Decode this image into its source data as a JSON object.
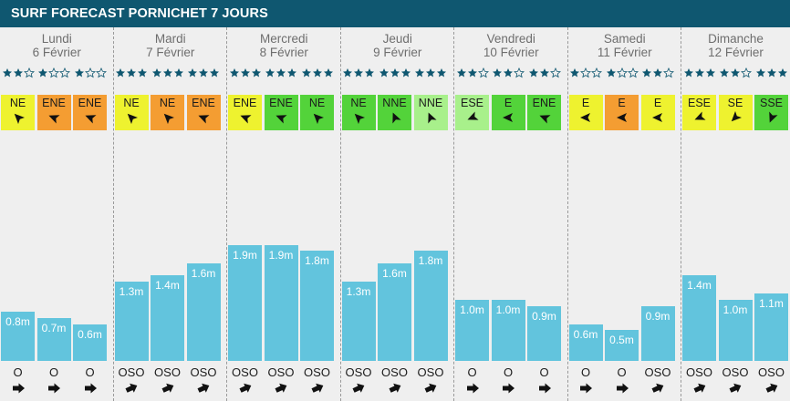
{
  "header": {
    "title": "SURF FORECAST PORNICHET 7 JOURS"
  },
  "colors": {
    "header_bg": "#0f5770",
    "bar": "#62c4dd",
    "star": "#0f5770",
    "wind_yellow": "#eef22f",
    "wind_orange": "#f49d32",
    "wind_green": "#53d33a",
    "wind_lightgreen": "#a8f08b"
  },
  "days": [
    {
      "name": "Lundi",
      "date": "6 Février",
      "slots": [
        {
          "stars": 2,
          "wind_dir": "NE",
          "wind_color": "#eef22f",
          "wind_angle": 225,
          "height": 0.8,
          "height_label": "0.8m",
          "swell_dir": "O",
          "swell_angle": 0
        },
        {
          "stars": 1,
          "wind_dir": "ENE",
          "wind_color": "#f49d32",
          "wind_angle": 202,
          "height": 0.7,
          "height_label": "0.7m",
          "swell_dir": "O",
          "swell_angle": 0
        },
        {
          "stars": 1,
          "wind_dir": "ENE",
          "wind_color": "#f49d32",
          "wind_angle": 202,
          "height": 0.6,
          "height_label": "0.6m",
          "swell_dir": "O",
          "swell_angle": 0
        }
      ]
    },
    {
      "name": "Mardi",
      "date": "7 Février",
      "slots": [
        {
          "stars": 3,
          "wind_dir": "NE",
          "wind_color": "#eef22f",
          "wind_angle": 225,
          "height": 1.3,
          "height_label": "1.3m",
          "swell_dir": "OSO",
          "swell_angle": -25
        },
        {
          "stars": 3,
          "wind_dir": "NE",
          "wind_color": "#f49d32",
          "wind_angle": 225,
          "height": 1.4,
          "height_label": "1.4m",
          "swell_dir": "OSO",
          "swell_angle": -25
        },
        {
          "stars": 3,
          "wind_dir": "ENE",
          "wind_color": "#f49d32",
          "wind_angle": 202,
          "height": 1.6,
          "height_label": "1.6m",
          "swell_dir": "OSO",
          "swell_angle": -25
        }
      ]
    },
    {
      "name": "Mercredi",
      "date": "8 Février",
      "slots": [
        {
          "stars": 3,
          "wind_dir": "ENE",
          "wind_color": "#eef22f",
          "wind_angle": 202,
          "height": 1.9,
          "height_label": "1.9m",
          "swell_dir": "OSO",
          "swell_angle": -25
        },
        {
          "stars": 3,
          "wind_dir": "ENE",
          "wind_color": "#53d33a",
          "wind_angle": 202,
          "height": 1.9,
          "height_label": "1.9m",
          "swell_dir": "OSO",
          "swell_angle": -25
        },
        {
          "stars": 3,
          "wind_dir": "NE",
          "wind_color": "#53d33a",
          "wind_angle": 225,
          "height": 1.8,
          "height_label": "1.8m",
          "swell_dir": "OSO",
          "swell_angle": -25
        }
      ]
    },
    {
      "name": "Jeudi",
      "date": "9 Février",
      "slots": [
        {
          "stars": 3,
          "wind_dir": "NE",
          "wind_color": "#53d33a",
          "wind_angle": 225,
          "height": 1.3,
          "height_label": "1.3m",
          "swell_dir": "OSO",
          "swell_angle": -25
        },
        {
          "stars": 3,
          "wind_dir": "NNE",
          "wind_color": "#53d33a",
          "wind_angle": 247,
          "height": 1.6,
          "height_label": "1.6m",
          "swell_dir": "OSO",
          "swell_angle": -25
        },
        {
          "stars": 3,
          "wind_dir": "NNE",
          "wind_color": "#a8f08b",
          "wind_angle": 247,
          "height": 1.8,
          "height_label": "1.8m",
          "swell_dir": "OSO",
          "swell_angle": -25
        }
      ]
    },
    {
      "name": "Vendredi",
      "date": "10 Février",
      "slots": [
        {
          "stars": 2,
          "wind_dir": "ESE",
          "wind_color": "#a8f08b",
          "wind_angle": 157,
          "height": 1.0,
          "height_label": "1.0m",
          "swell_dir": "O",
          "swell_angle": 0
        },
        {
          "stars": 2,
          "wind_dir": "E",
          "wind_color": "#53d33a",
          "wind_angle": 180,
          "height": 1.0,
          "height_label": "1.0m",
          "swell_dir": "O",
          "swell_angle": 0
        },
        {
          "stars": 2,
          "wind_dir": "ENE",
          "wind_color": "#53d33a",
          "wind_angle": 202,
          "height": 0.9,
          "height_label": "0.9m",
          "swell_dir": "O",
          "swell_angle": 0
        }
      ]
    },
    {
      "name": "Samedi",
      "date": "11 Février",
      "slots": [
        {
          "stars": 1,
          "wind_dir": "E",
          "wind_color": "#eef22f",
          "wind_angle": 180,
          "height": 0.6,
          "height_label": "0.6m",
          "swell_dir": "O",
          "swell_angle": 0
        },
        {
          "stars": 1,
          "wind_dir": "E",
          "wind_color": "#f49d32",
          "wind_angle": 180,
          "height": 0.5,
          "height_label": "0.5m",
          "swell_dir": "O",
          "swell_angle": 0
        },
        {
          "stars": 2,
          "wind_dir": "E",
          "wind_color": "#eef22f",
          "wind_angle": 180,
          "height": 0.9,
          "height_label": "0.9m",
          "swell_dir": "OSO",
          "swell_angle": -25
        }
      ]
    },
    {
      "name": "Dimanche",
      "date": "12 Février",
      "slots": [
        {
          "stars": 3,
          "wind_dir": "ESE",
          "wind_color": "#eef22f",
          "wind_angle": 157,
          "height": 1.4,
          "height_label": "1.4m",
          "swell_dir": "OSO",
          "swell_angle": -25
        },
        {
          "stars": 2,
          "wind_dir": "SE",
          "wind_color": "#eef22f",
          "wind_angle": 135,
          "height": 1.0,
          "height_label": "1.0m",
          "swell_dir": "OSO",
          "swell_angle": -25
        },
        {
          "stars": 3,
          "wind_dir": "SSE",
          "wind_color": "#53d33a",
          "wind_angle": 112,
          "height": 1.1,
          "height_label": "1.1m",
          "swell_dir": "OSO",
          "swell_angle": -25
        }
      ]
    }
  ]
}
